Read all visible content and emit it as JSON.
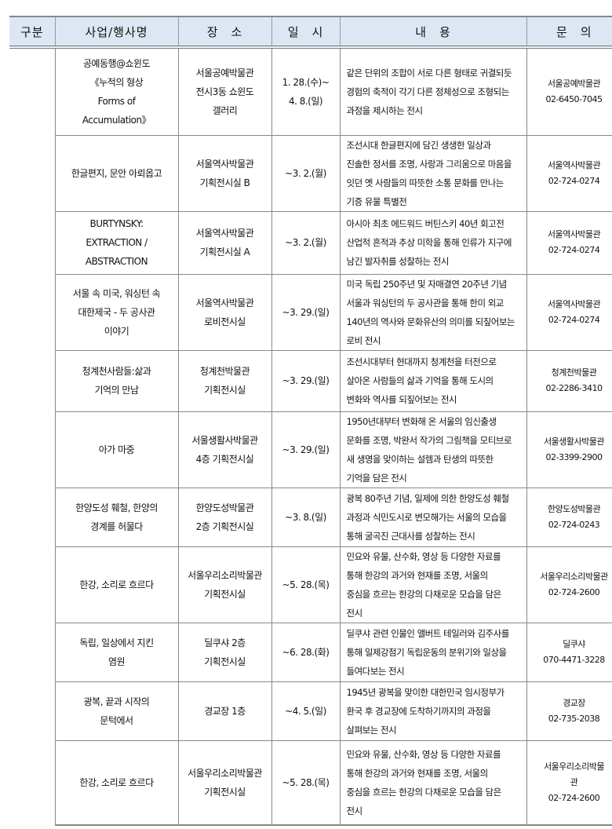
{
  "header": [
    "구분",
    "사업/행사명",
    "장　소",
    "일　시",
    "내　용",
    "문　의"
  ],
  "category": "",
  "rows": [
    {
      "name": "공예동행@쇼윈도\n《누적의 형상\nForms of\nAccumulation》",
      "place": "서울공예박물관\n전시3동 쇼윈도\n갤러리",
      "date": "1. 28.(수)~\n4. 8.(일)",
      "content": "같은 단위의 조합이 서로 다른 형태로 귀결되듯\n경험의 축적이 각기 다른 정체성으로 조형되는\n과정을 제시하는 전시",
      "contact": "서울공예박물관\n02-6450-7045"
    },
    {
      "name": "한글편지, 문안 아뢰옵고",
      "place": "서울역사박물관\n기획전시실 B",
      "date": "~3. 2.(월)",
      "content": "조선시대 한글편지에 담긴 생생한 일상과\n진솔한 정서를 조명, 사랑과 그리움으로 마음을\n잇던 옛 사람들의 따뜻한 소통 문화를 만나는\n기증 유물 특별전",
      "contact": "서울역사박물관\n02-724-0274"
    },
    {
      "name": "BURTYNSKY:\nEXTRACTION /\nABSTRACTION",
      "place": "서울역사박물관\n기획전시실 A",
      "date": "~3. 2.(월)",
      "content": "아시아 최초 에드워드 버틴스키 40년 회고전\n산업적 흔적과 추상 미학을 통해 인류가 지구에\n남긴 발자취를 성찰하는 전시",
      "contact": "서울역사박물관\n02-724-0274"
    },
    {
      "name": "서울 속 미국, 워싱턴 속\n대한제국 - 두 공사관\n이야기",
      "place": "서울역사박물관\n로비전시실",
      "date": "~3. 29.(일)",
      "content": "미국 독립 250주년 및 자매결연 20주년 기념\n서울과 워싱턴의 두 공사관을 통해 한미 외교\n140년의 역사와 문화유산의 의미를 되짚어보는\n로비 전시",
      "contact": "서울역사박물관\n02-724-0274"
    },
    {
      "name": "청계천사람들:삶과\n기억의 만남",
      "place": "청계천박물관\n기획전시실",
      "date": "~3. 29.(일)",
      "content": "조선시대부터 현대까지 청계천을 터전으로\n살아온 사람들의 삶과 기억을 통해 도시의\n변화와 역사를 되짚어보는 전시",
      "contact": "청계천박물관\n02-2286-3410"
    },
    {
      "name": "아가 마중",
      "place": "서울생활사박물관\n4층 기획전시실",
      "date": "~3. 29.(일)",
      "content": "1950년대부터 변화해 온 서울의 임신출생\n문화를 조명, 박완서 작가의 그림책을 모티브로\n새 생명을 맞이하는 설렘과 탄생의 따뜻한\n기억을 담은 전시",
      "contact": "서울생활사박물관\n02-3399-2900"
    },
    {
      "name": "한양도성 훼철, 한양의\n경계를 허물다",
      "place": "한양도성박물관\n2층 기획전시실",
      "date": "~3. 8.(일)",
      "content": "광복 80주년 기념, 일제에 의한 한양도성 훼철\n과정과 식민도시로 변모해가는 서울의 모습을\n통해 굴곡진 근대사를 성찰하는 전시",
      "contact": "한양도성박물관\n02-724-0243"
    },
    {
      "name": "한강, 소리로 흐르다",
      "place": "서울우리소리박물관\n기획전시실",
      "date": "~5. 28.(목)",
      "content": "민요와 유물, 산수화, 영상 등 다양한 자료를\n통해 한강의 과거와 현재를 조명, 서울의\n중심을 흐르는 한강의 다채로운 모습을 담은\n전시",
      "contact": "서울우리소리박물관\n02-724-2600"
    },
    {
      "name": "독립, 일상에서 지킨\n염원",
      "place": "딜쿠샤 2층\n기획전시실",
      "date": "~6. 28.(화)",
      "content": "딜쿠샤 관련 인물인 앨버트 테일러와 김주사를\n통해 일제강점기 독립운동의 분위기와 일상을\n들여다보는 전시",
      "contact": "딜쿠샤\n070-4471-3228"
    },
    {
      "name": "광복, 끝과 시작의\n문턱에서",
      "place": "경교장 1층",
      "date": "~4. 5.(일)",
      "content": "1945년 광복을 맞이한 대한민국 임시정부가\n환국 후 경교장에 도착하기까지의 과정을\n살펴보는 전시",
      "contact": "경교장\n02-735-2038"
    },
    {
      "name": "한강, 소리로 흐르다",
      "place": "서울우리소리박물관\n기획전시실",
      "date": "~5. 28.(목)",
      "content": "민요와 유물, 산수화, 영상 등 다양한 자료를\n통해 한강의 과거와 현재를 조명, 서울의\n중심을 흐르는 한강의 다채로운 모습을 담은\n전시",
      "contact": "서울우리소리박물\n관\n02-724-2600"
    }
  ]
}
